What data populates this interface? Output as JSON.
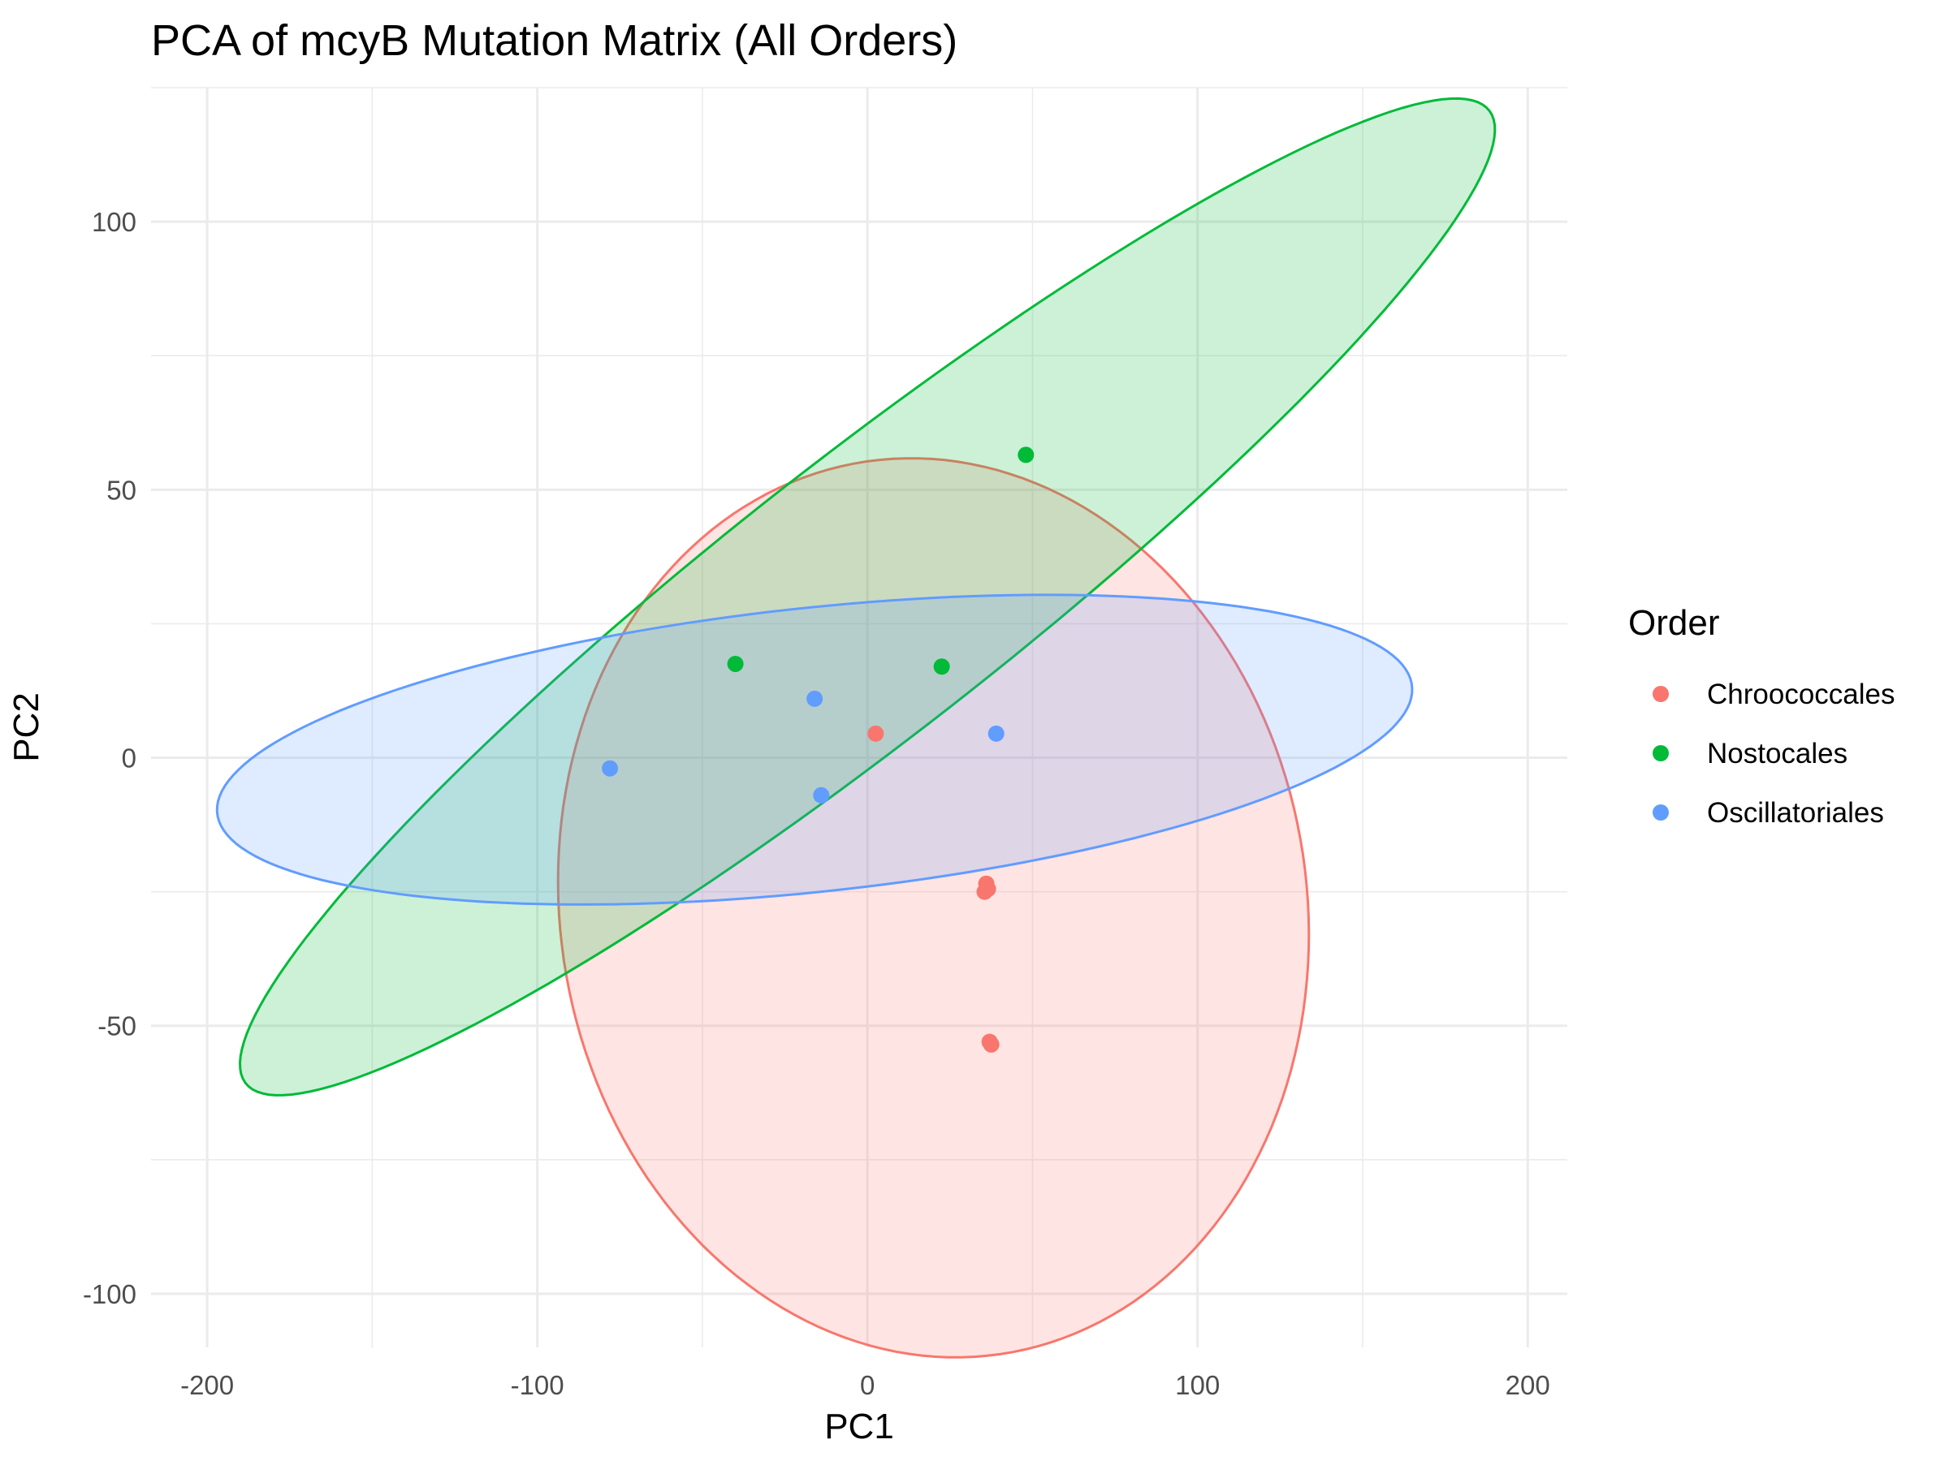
{
  "chart_data": {
    "type": "scatter",
    "title": "PCA of mcyB Mutation Matrix (All Orders)",
    "xlabel": "PC1",
    "ylabel": "PC2",
    "xlim": [
      -217,
      212
    ],
    "ylim": [
      -110,
      125
    ],
    "xticks": [
      -200,
      -100,
      0,
      100,
      200
    ],
    "yticks": [
      -100,
      -50,
      0,
      50,
      100
    ],
    "x_tick_labels": [
      "-200",
      "-100",
      "0",
      "100",
      "200"
    ],
    "y_tick_labels": [
      "-100",
      "-50",
      "0",
      "50",
      "100"
    ],
    "grid": true,
    "legend": {
      "title": "Order",
      "position": "right"
    },
    "series": [
      {
        "name": "Chroococcales",
        "color": "#F8766D",
        "points": [
          [
            2.5,
            4.5
          ],
          [
            36,
            -23.5
          ],
          [
            35.5,
            -25
          ],
          [
            36.5,
            -24.5
          ],
          [
            37,
            -53
          ],
          [
            37.5,
            -53.5
          ]
        ],
        "ellipse": {
          "center": [
            20,
            -28
          ],
          "axis1_point": [
            84,
            -100
          ],
          "axis2_point": [
            114,
            15
          ]
        }
      },
      {
        "name": "Nostocales",
        "color": "#00BA38",
        "points": [
          [
            -40,
            17.5
          ],
          [
            22.5,
            17
          ],
          [
            48,
            56.5
          ]
        ],
        "ellipse": {
          "center": [
            0,
            30
          ],
          "axis1_point": [
            190,
            118
          ],
          "axis2_point": [
            -5,
            60
          ]
        }
      },
      {
        "name": "Oscillatoriales",
        "color": "#619CFF",
        "points": [
          [
            -78,
            -2
          ],
          [
            -16,
            11
          ],
          [
            -14,
            -7
          ],
          [
            39,
            4.5
          ]
        ],
        "ellipse": {
          "center": [
            -16,
            1.5
          ],
          "axis1_point": [
            165,
            13
          ],
          "axis2_point": [
            -18,
            28
          ]
        }
      }
    ]
  }
}
